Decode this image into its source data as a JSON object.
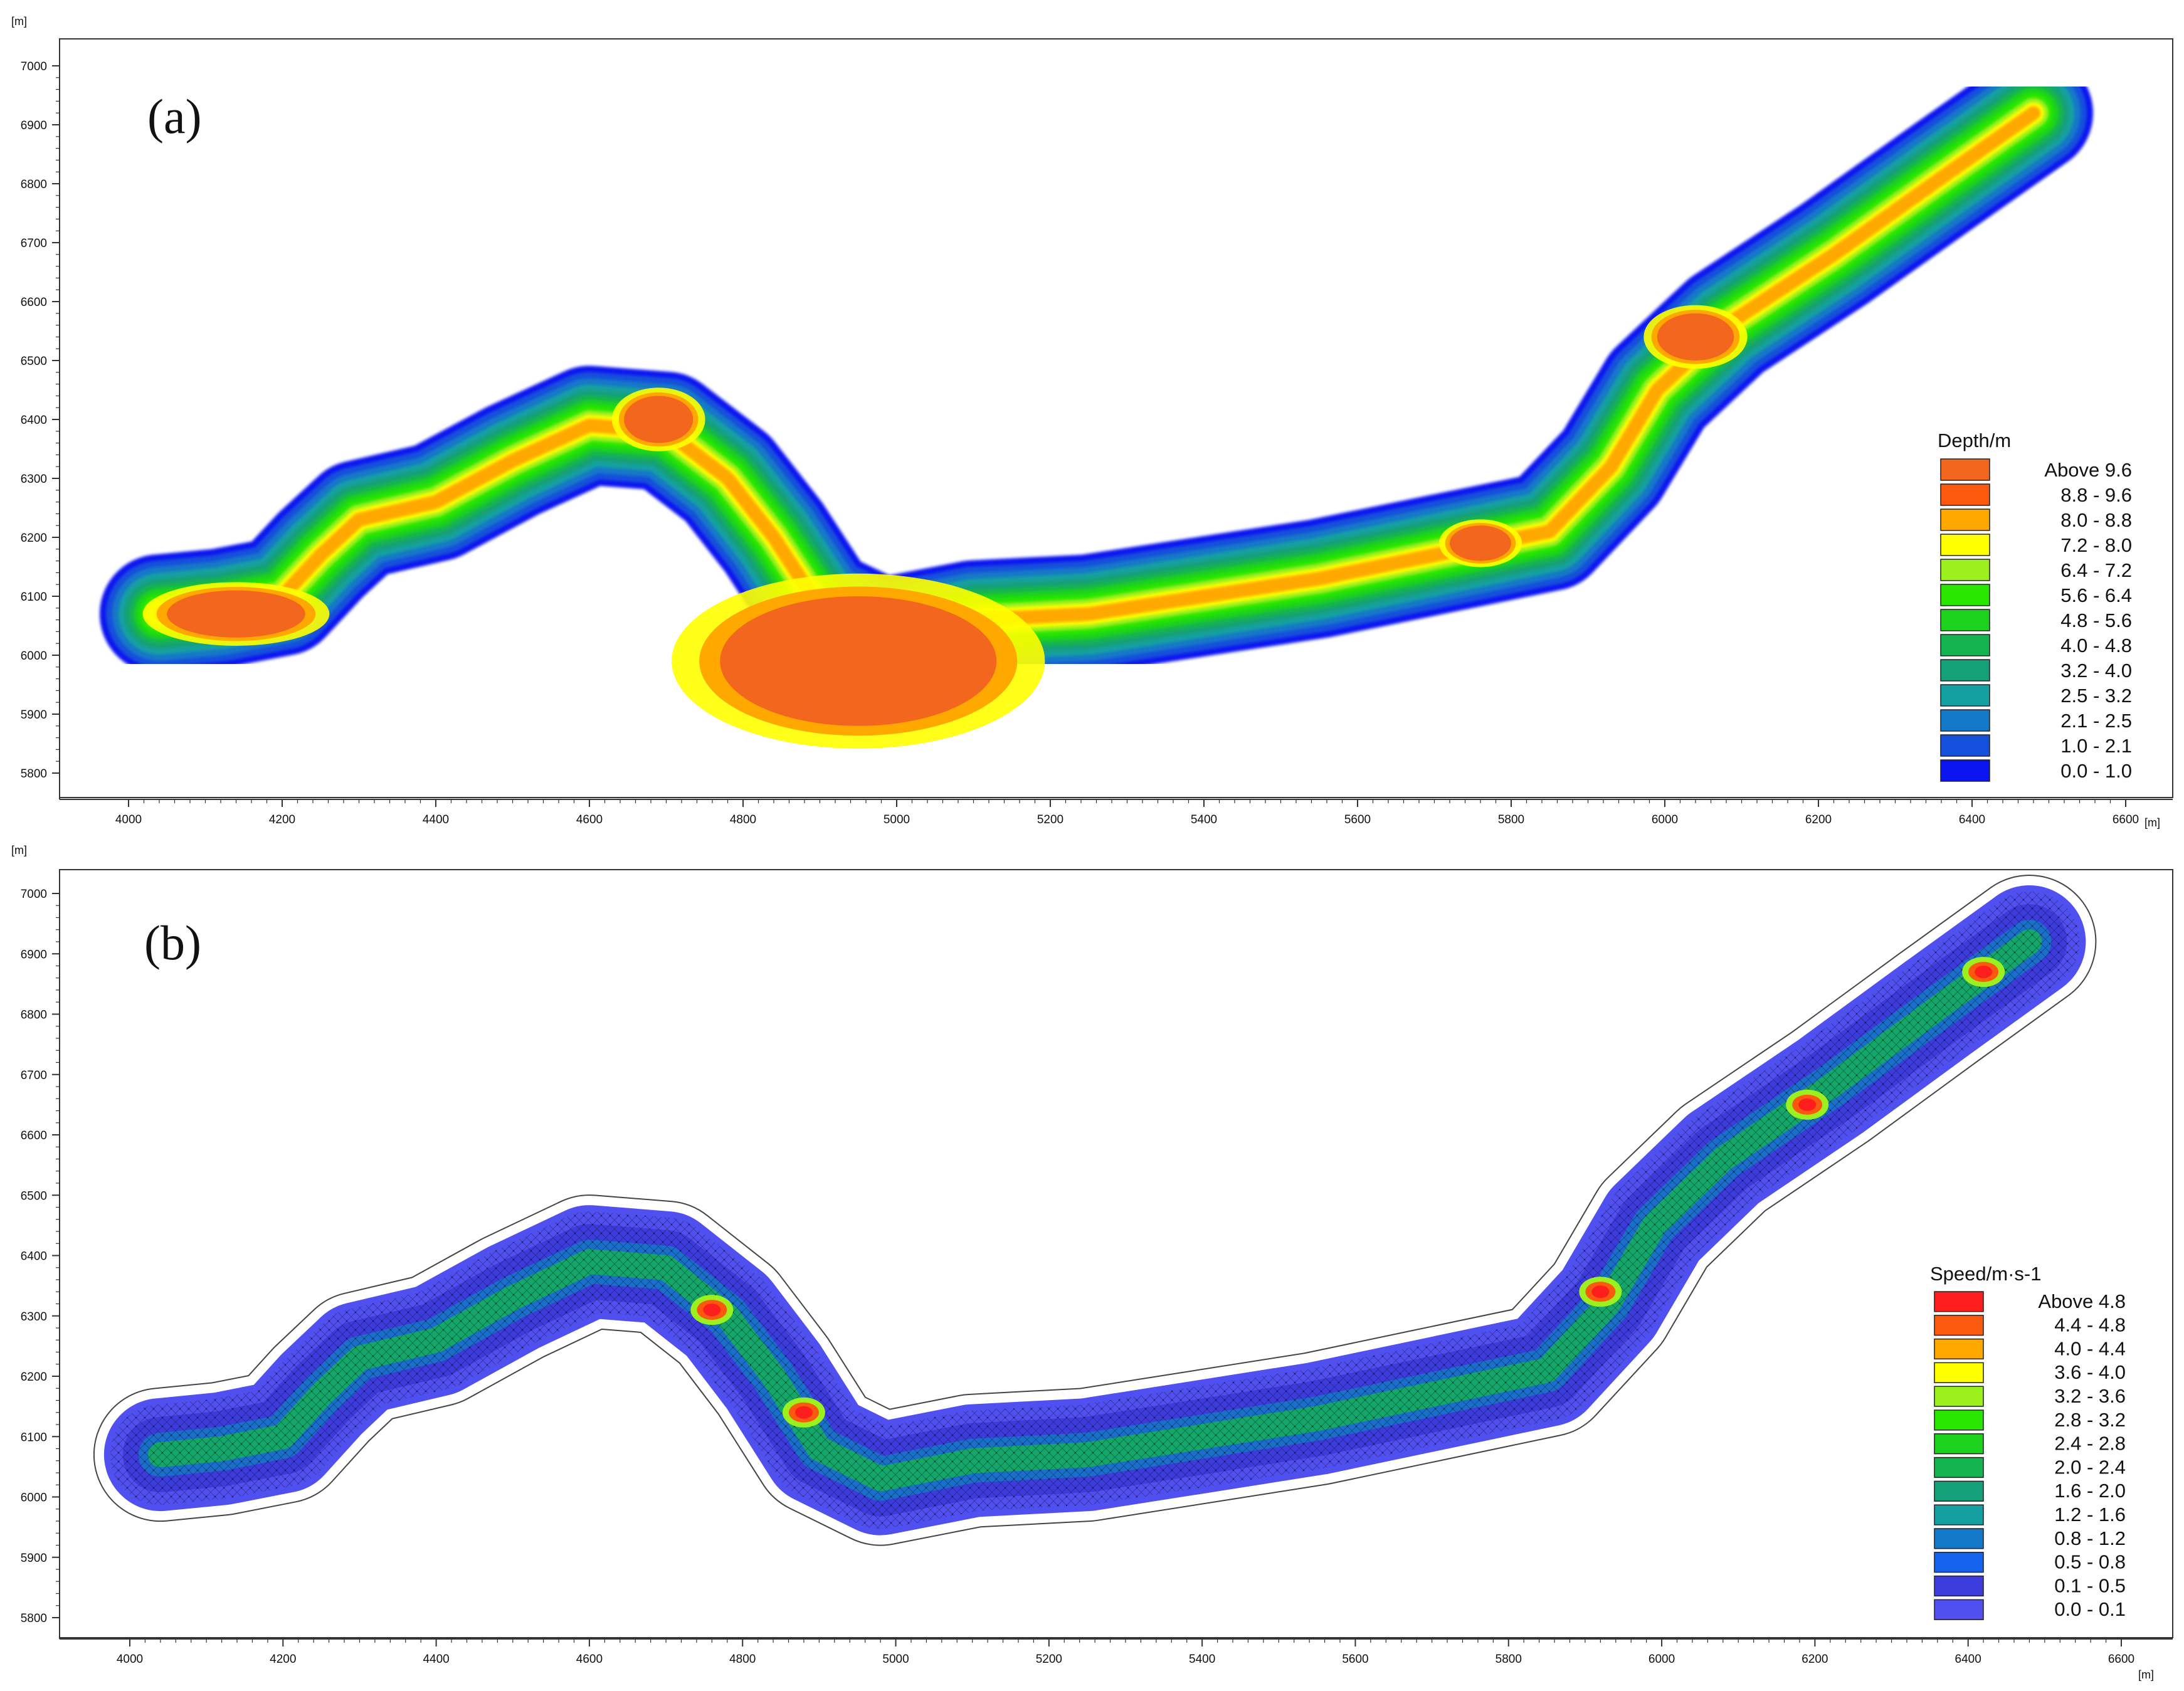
{
  "chart_data": [
    {
      "id": "a",
      "type": "heatmap",
      "panel_label": "(a)",
      "x_unit": "[m]",
      "y_unit": "[m]",
      "xlim": [
        3900,
        6640
      ],
      "ylim": [
        5770,
        7020
      ],
      "x_ticks": [
        4000,
        4200,
        4400,
        4600,
        4800,
        5000,
        5200,
        5400,
        5600,
        5800,
        6000,
        6200,
        6400,
        6600
      ],
      "y_ticks": [
        5800,
        5900,
        6000,
        6100,
        6200,
        6300,
        6400,
        6500,
        6600,
        6700,
        6800,
        6900,
        7000
      ],
      "grid": false,
      "legend_title": "Depth/m",
      "legend_position": "bottom-right",
      "legend": [
        {
          "label": "Above  9.6",
          "color": "#f2661e"
        },
        {
          "label": "8.8 -  9.6",
          "color": "#fb5a0e"
        },
        {
          "label": "8.0 -  8.8",
          "color": "#ffa800"
        },
        {
          "label": "7.2 -  8.0",
          "color": "#ffff00"
        },
        {
          "label": "6.4 -  7.2",
          "color": "#9cf01e"
        },
        {
          "label": "5.6 -  6.4",
          "color": "#28e600"
        },
        {
          "label": "4.8 -  5.6",
          "color": "#1cd21c"
        },
        {
          "label": "4.0 -  4.8",
          "color": "#14b450"
        },
        {
          "label": "3.2 -  4.0",
          "color": "#14a078"
        },
        {
          "label": "2.5 -  3.2",
          "color": "#14a0a0"
        },
        {
          "label": "2.1 -  2.5",
          "color": "#1478c8"
        },
        {
          "label": "1.0 -  2.1",
          "color": "#1450dc"
        },
        {
          "label": "0.0 -  1.0",
          "color": "#0a14f0"
        }
      ]
    },
    {
      "id": "b",
      "type": "heatmap",
      "panel_label": "(b)",
      "x_unit": "[m]",
      "y_unit": "[m]",
      "xlim": [
        3900,
        6640
      ],
      "ylim": [
        5770,
        7020
      ],
      "x_ticks": [
        4000,
        4200,
        4400,
        4600,
        4800,
        5000,
        5200,
        5400,
        5600,
        5800,
        6000,
        6200,
        6400,
        6600
      ],
      "y_ticks": [
        5800,
        5900,
        6000,
        6100,
        6200,
        6300,
        6400,
        6500,
        6600,
        6700,
        6800,
        6900,
        7000
      ],
      "grid": false,
      "legend_title": "Speed/m·s-1",
      "legend_position": "bottom-right",
      "legend": [
        {
          "label": "Above  4.8",
          "color": "#ff1e1e"
        },
        {
          "label": "4.4 -  4.8",
          "color": "#fb5a0e"
        },
        {
          "label": "4.0 -  4.4",
          "color": "#ffa800"
        },
        {
          "label": "3.6 -  4.0",
          "color": "#ffff00"
        },
        {
          "label": "3.2 -  3.6",
          "color": "#9cf01e"
        },
        {
          "label": "2.8 -  3.2",
          "color": "#28e600"
        },
        {
          "label": "2.4 -  2.8",
          "color": "#1cd21c"
        },
        {
          "label": "2.0 -  2.4",
          "color": "#14b450"
        },
        {
          "label": "1.6 -  2.0",
          "color": "#14a078"
        },
        {
          "label": "1.2 -  1.6",
          "color": "#14a0a0"
        },
        {
          "label": "0.8 -  1.2",
          "color": "#1478c8"
        },
        {
          "label": "0.5 -  0.8",
          "color": "#1464f0"
        },
        {
          "label": "0.1 -  0.5",
          "color": "#3c3cdc"
        },
        {
          "label": "0.0 -  0.1",
          "color": "#5050f0"
        }
      ]
    }
  ],
  "river_centerline": [
    [
      4040,
      6070
    ],
    [
      4120,
      6080
    ],
    [
      4200,
      6100
    ],
    [
      4250,
      6170
    ],
    [
      4300,
      6230
    ],
    [
      4400,
      6260
    ],
    [
      4500,
      6330
    ],
    [
      4600,
      6390
    ],
    [
      4700,
      6380
    ],
    [
      4780,
      6300
    ],
    [
      4840,
      6200
    ],
    [
      4900,
      6080
    ],
    [
      4980,
      6030
    ],
    [
      5100,
      6060
    ],
    [
      5250,
      6070
    ],
    [
      5400,
      6100
    ],
    [
      5550,
      6130
    ],
    [
      5700,
      6170
    ],
    [
      5850,
      6210
    ],
    [
      5930,
      6320
    ],
    [
      5990,
      6450
    ],
    [
      6080,
      6560
    ],
    [
      6220,
      6680
    ],
    [
      6360,
      6810
    ],
    [
      6480,
      6920
    ]
  ]
}
